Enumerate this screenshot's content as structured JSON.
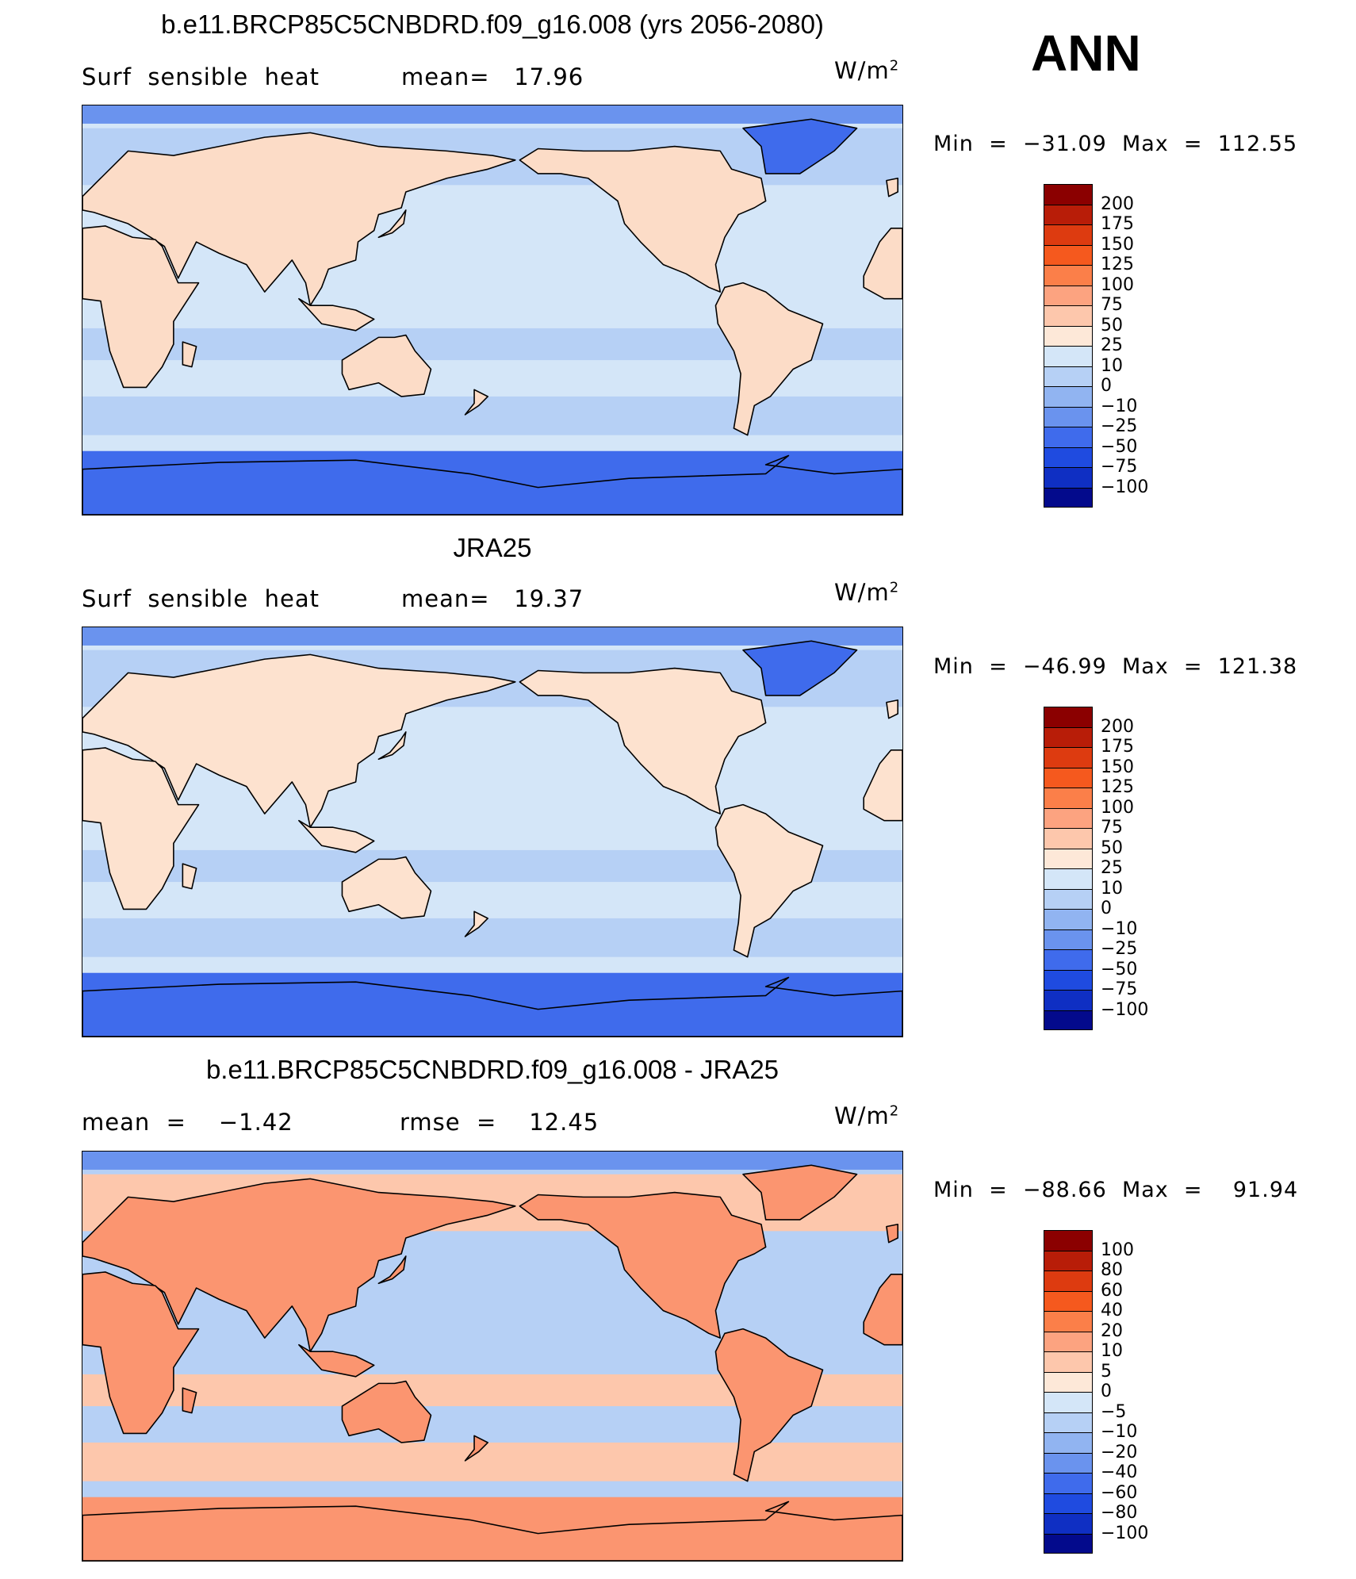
{
  "season_label": "ANN",
  "panels": [
    {
      "title": "b.e11.BRCP85C5CNBDRD.f09_g16.008 (yrs 2056-2080)",
      "left_label": "Surf  sensible  heat",
      "mid_label": "mean=   17.96",
      "units_base": "W/m",
      "units_exp": "2",
      "minmax": "Min  =  −31.09  Max  =  112.55",
      "colorbar_labels": [
        "200",
        "175",
        "150",
        "125",
        "100",
        "75",
        "50",
        "25",
        "10",
        "0",
        "−10",
        "−25",
        "−50",
        "−75",
        "−100"
      ],
      "colorbar_colors": [
        "#8b0000",
        "#b81d08",
        "#dd3b10",
        "#f5591e",
        "#fb7f49",
        "#fca380",
        "#fdc7ac",
        "#fde8d8",
        "#d4e6f8",
        "#b6d0f5",
        "#91b4f1",
        "#6a93ee",
        "#3f6bec",
        "#1f4be0",
        "#0f2fc3",
        "#030a8c"
      ],
      "map_palette": {
        "ocean": "#d4e6f8",
        "land": "#fcdcc7",
        "band": "#b6d0f5",
        "polar": "#3f6bec",
        "deep": "#6a93ee"
      }
    },
    {
      "title": "JRA25",
      "left_label": "Surf  sensible  heat",
      "mid_label": "mean=   19.37",
      "units_base": "W/m",
      "units_exp": "2",
      "minmax": "Min  =  −46.99  Max  =  121.38",
      "colorbar_labels": [
        "200",
        "175",
        "150",
        "125",
        "100",
        "75",
        "50",
        "25",
        "10",
        "0",
        "−10",
        "−25",
        "−50",
        "−75",
        "−100"
      ],
      "colorbar_colors": [
        "#8b0000",
        "#b81d08",
        "#dd3b10",
        "#f5591e",
        "#fb7f49",
        "#fca380",
        "#fdc7ac",
        "#fde8d8",
        "#d4e6f8",
        "#b6d0f5",
        "#91b4f1",
        "#6a93ee",
        "#3f6bec",
        "#1f4be0",
        "#0f2fc3",
        "#030a8c"
      ],
      "map_palette": {
        "ocean": "#d4e6f8",
        "land": "#fde2cf",
        "band": "#b6d0f5",
        "polar": "#3f6bec",
        "deep": "#6a93ee"
      }
    },
    {
      "title": "b.e11.BRCP85C5CNBDRD.f09_g16.008 - JRA25",
      "left_label": "mean  =    −1.42",
      "mid_label": "rmse  =    12.45",
      "units_base": "W/m",
      "units_exp": "2",
      "minmax": "Min  =  −88.66  Max  =    91.94",
      "colorbar_labels": [
        "100",
        "80",
        "60",
        "40",
        "20",
        "10",
        "5",
        "0",
        "−5",
        "−10",
        "−20",
        "−40",
        "−60",
        "−80",
        "−100"
      ],
      "colorbar_colors": [
        "#8b0000",
        "#b81d08",
        "#dd3b10",
        "#f5591e",
        "#fb7f49",
        "#fca380",
        "#fdc7ac",
        "#fde8d8",
        "#d4e6f8",
        "#b6d0f5",
        "#91b4f1",
        "#6a93ee",
        "#3f6bec",
        "#1f4be0",
        "#0f2fc3",
        "#030a8c"
      ],
      "map_palette": {
        "ocean": "#b6d0f5",
        "land": "#fb9570",
        "band": "#fdc7ac",
        "polar": "#fb9570",
        "deep": "#6a93ee"
      }
    }
  ]
}
